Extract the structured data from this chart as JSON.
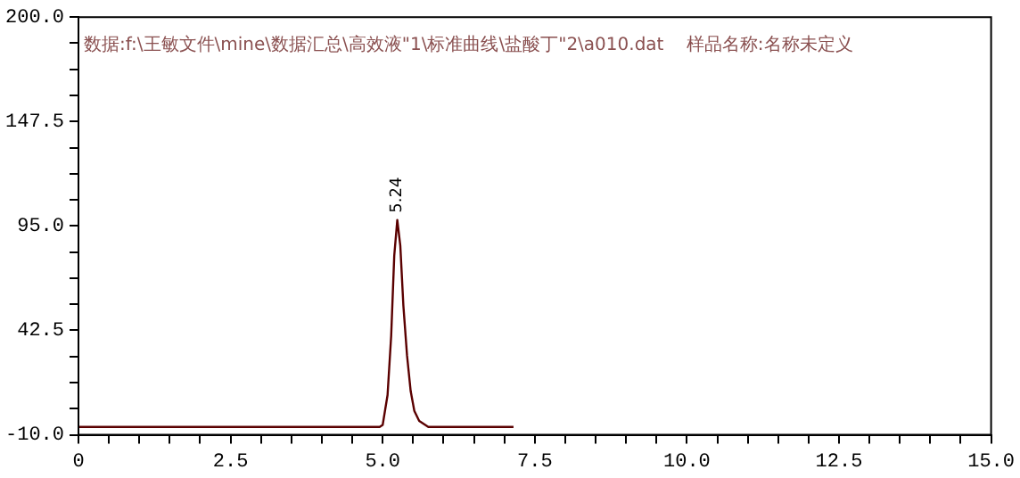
{
  "chart_data": {
    "type": "line",
    "x": [
      0,
      4.95,
      5.0,
      5.08,
      5.14,
      5.19,
      5.24,
      5.29,
      5.34,
      5.4,
      5.46,
      5.52,
      5.6,
      5.75,
      6.0,
      7.15
    ],
    "series": [
      {
        "color": "#5a0000",
        "values": [
          -6,
          -6,
          -5,
          10,
          40,
          80,
          98,
          85,
          55,
          30,
          12,
          2,
          -3,
          -6,
          -6,
          -6
        ]
      }
    ],
    "xlim": [
      0,
      15
    ],
    "xticks": [
      0,
      {
        "value": 0.5,
        "label": null
      },
      {
        "value": 1,
        "label": null
      },
      {
        "value": 1.5,
        "label": null
      },
      {
        "value": 2,
        "label": null
      },
      {
        "value": 2.5,
        "label": "2.5"
      },
      {
        "value": 3,
        "label": null
      },
      {
        "value": 3.5,
        "label": null
      },
      {
        "value": 4,
        "label": null
      },
      {
        "value": 4.5,
        "label": null
      },
      {
        "value": 5,
        "label": "5.0"
      },
      {
        "value": 5.5,
        "label": null
      },
      {
        "value": 6,
        "label": null
      },
      {
        "value": 6.5,
        "label": null
      },
      {
        "value": 7,
        "label": null
      },
      {
        "value": 7.5,
        "label": "7.5"
      },
      {
        "value": 8,
        "label": null
      },
      {
        "value": 8.5,
        "label": null
      },
      {
        "value": 9,
        "label": null
      },
      {
        "value": 9.5,
        "label": null
      },
      {
        "value": 10,
        "label": "10.0"
      },
      {
        "value": 10.5,
        "label": null
      },
      {
        "value": 11,
        "label": null
      },
      {
        "value": 11.5,
        "label": null
      },
      {
        "value": 12,
        "label": null
      },
      {
        "value": 12.5,
        "label": "12.5"
      },
      {
        "value": 13,
        "label": null
      },
      {
        "value": 13.5,
        "label": null
      },
      {
        "value": 14,
        "label": null
      },
      {
        "value": 14.5,
        "label": null
      },
      {
        "value": 15,
        "label": "15.0"
      }
    ],
    "ylim": [
      -10,
      200
    ],
    "yticks": [
      {
        "value": -10,
        "label": "-10.0"
      },
      {
        "value": 3.125,
        "label": null
      },
      {
        "value": 16.25,
        "label": null
      },
      {
        "value": 29.375,
        "label": null
      },
      42.5,
      {
        "value": 55.625,
        "label": null
      },
      {
        "value": 68.75,
        "label": null
      },
      {
        "value": 81.875,
        "label": null
      },
      {
        "value": 95,
        "label": "95.0"
      },
      {
        "value": 108.125,
        "label": null
      },
      {
        "value": 121.25,
        "label": null
      },
      {
        "value": 134.375,
        "label": null
      },
      147.5,
      {
        "value": 160.625,
        "label": null
      },
      {
        "value": 173.75,
        "label": null
      },
      {
        "value": 186.875,
        "label": null
      },
      {
        "value": 200,
        "label": "200.0"
      }
    ],
    "grid": false,
    "legend": false,
    "marker": "none",
    "line_style": "solid",
    "annotations": [
      "数据:f:\\王敏文件\\mine\\数据汇总\\高效液\"1\\标准曲线\\盐酸丁\"2\\a010.dat    样品名称:名称未定义",
      {
        "text": "5.24",
        "x": 5.24,
        "y": 98
      }
    ]
  }
}
